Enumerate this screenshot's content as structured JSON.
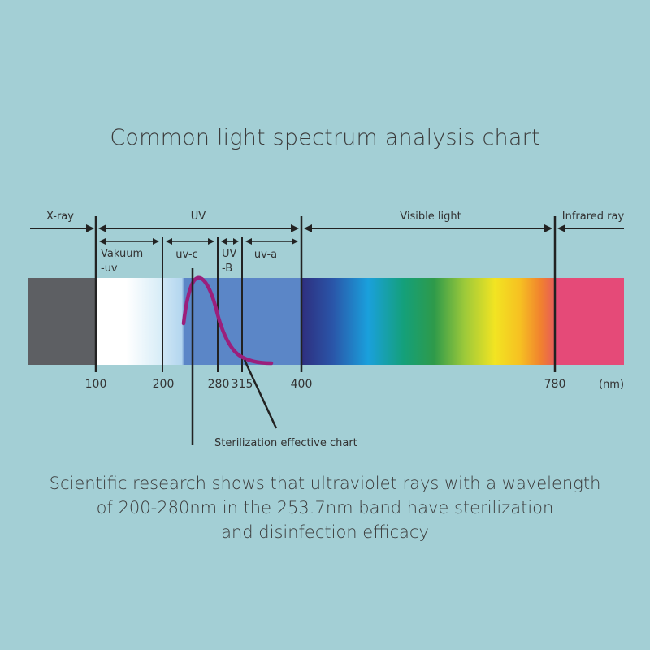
{
  "title": "Common light spectrum analysis chart",
  "regions": {
    "xray": "X-ray",
    "uv": "UV",
    "visible": "Visible light",
    "infrared": "Infrared ray"
  },
  "uv_bands": {
    "vakuum_line1": "Vakuum",
    "vakuum_line2": "-uv",
    "uvc": "uv-c",
    "uvb_line1": "UV",
    "uvb_line2": "-B",
    "uva": "uv-a"
  },
  "ticks": [
    "100",
    "200",
    "280",
    "315",
    "400",
    "780"
  ],
  "unit": "(nm)",
  "curve_label": "Sterilization effective chart",
  "caption": {
    "line1": "Scientific research shows that ultraviolet rays with a wavelength",
    "line2": "of 200-280nm in the 253.7nm band have sterilization",
    "line3": "and disinfection efficacy"
  },
  "colors": {
    "background": "#a3cfd5",
    "xray": "#5d5f63",
    "uv_band": "#5b86c7",
    "curve": "#9b1f7c",
    "infrared": "#e54a78"
  }
}
